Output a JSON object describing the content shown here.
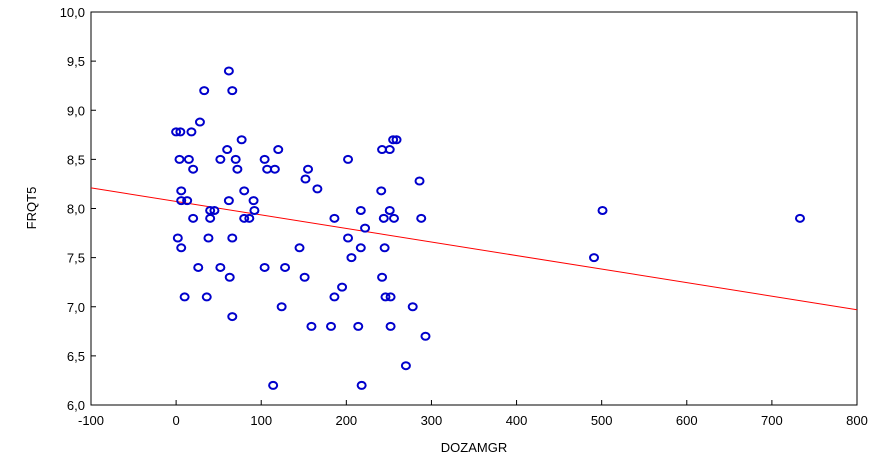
{
  "chart_data": {
    "type": "scatter",
    "xlabel": "DOZAMGR",
    "ylabel": "FRQT5",
    "xlim": [
      -100,
      800
    ],
    "ylim": [
      6.0,
      10.0
    ],
    "xticks": [
      -100,
      0,
      100,
      200,
      300,
      400,
      500,
      600,
      700,
      800
    ],
    "xtick_labels": [
      "-100",
      "0",
      "100",
      "200",
      "300",
      "400",
      "500",
      "600",
      "700",
      "800"
    ],
    "yticks": [
      6.0,
      6.5,
      7.0,
      7.5,
      8.0,
      8.5,
      9.0,
      9.5,
      10.0
    ],
    "ytick_labels": [
      "6,0",
      "6,5",
      "7,0",
      "7,5",
      "8,0",
      "8,5",
      "9,0",
      "9,5",
      "10,0"
    ],
    "grid": false,
    "legend": "none",
    "colors": {
      "points": "#0000cc",
      "fit_line": "#ff0000"
    },
    "fit_line": {
      "x": [
        -100,
        800
      ],
      "y": [
        8.21,
        6.97
      ]
    },
    "points": [
      [
        0,
        8.78
      ],
      [
        5,
        8.78
      ],
      [
        15,
        8.5
      ],
      [
        18,
        8.78
      ],
      [
        28,
        8.88
      ],
      [
        33,
        9.2
      ],
      [
        62,
        9.4
      ],
      [
        66,
        9.2
      ],
      [
        4,
        8.5
      ],
      [
        20,
        8.4
      ],
      [
        60,
        8.6
      ],
      [
        70,
        8.5
      ],
      [
        77,
        8.7
      ],
      [
        72,
        8.4
      ],
      [
        104,
        8.5
      ],
      [
        107,
        8.4
      ],
      [
        120,
        8.6
      ],
      [
        116,
        8.4
      ],
      [
        6,
        8.18
      ],
      [
        6,
        8.08
      ],
      [
        13,
        8.08
      ],
      [
        20,
        7.9
      ],
      [
        40,
        7.98
      ],
      [
        40,
        7.9
      ],
      [
        45,
        7.98
      ],
      [
        52,
        8.5
      ],
      [
        62,
        8.08
      ],
      [
        80,
        8.18
      ],
      [
        80,
        7.9
      ],
      [
        86,
        7.9
      ],
      [
        91,
        8.08
      ],
      [
        92,
        7.98
      ],
      [
        2,
        7.7
      ],
      [
        6,
        7.6
      ],
      [
        10,
        7.1
      ],
      [
        26,
        7.4
      ],
      [
        36,
        7.1
      ],
      [
        38,
        7.7
      ],
      [
        52,
        7.4
      ],
      [
        63,
        7.3
      ],
      [
        66,
        7.7
      ],
      [
        66,
        6.9
      ],
      [
        104,
        7.4
      ],
      [
        114,
        6.2
      ],
      [
        124,
        7.0
      ],
      [
        128,
        7.4
      ],
      [
        145,
        7.6
      ],
      [
        151,
        7.3
      ],
      [
        152,
        8.3
      ],
      [
        155,
        8.4
      ],
      [
        159,
        6.8
      ],
      [
        166,
        8.2
      ],
      [
        182,
        6.8
      ],
      [
        186,
        7.1
      ],
      [
        186,
        7.9
      ],
      [
        195,
        7.2
      ],
      [
        202,
        8.5
      ],
      [
        202,
        7.7
      ],
      [
        206,
        7.5
      ],
      [
        214,
        6.8
      ],
      [
        217,
        7.98
      ],
      [
        217,
        7.6
      ],
      [
        218,
        6.2
      ],
      [
        222,
        7.8
      ],
      [
        242,
        8.6
      ],
      [
        241,
        8.18
      ],
      [
        242,
        7.3
      ],
      [
        244,
        7.9
      ],
      [
        245,
        7.6
      ],
      [
        246,
        7.1
      ],
      [
        251,
        7.98
      ],
      [
        251,
        8.6
      ],
      [
        252,
        7.1
      ],
      [
        252,
        6.8
      ],
      [
        255,
        8.7
      ],
      [
        256,
        7.9
      ],
      [
        259,
        8.7
      ],
      [
        270,
        6.4
      ],
      [
        278,
        7.0
      ],
      [
        286,
        8.28
      ],
      [
        288,
        7.9
      ],
      [
        293,
        6.7
      ],
      [
        491,
        7.5
      ],
      [
        501,
        7.98
      ],
      [
        733,
        7.9
      ]
    ]
  }
}
